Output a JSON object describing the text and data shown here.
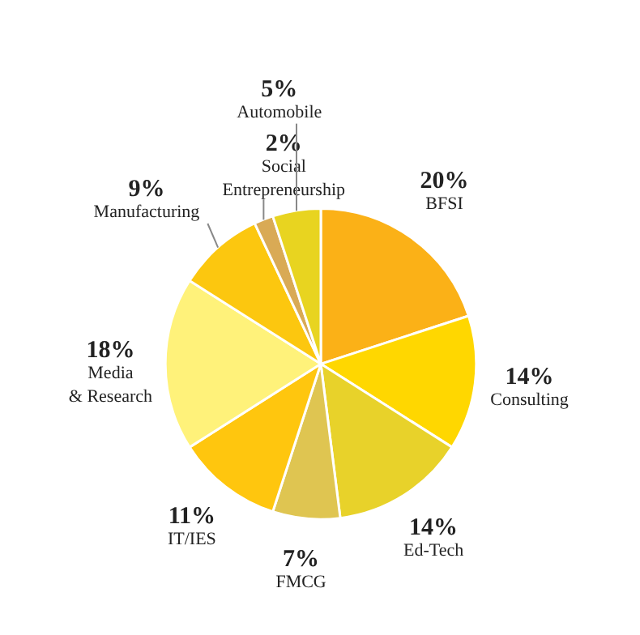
{
  "chart_data": {
    "type": "pie",
    "categories": [
      "BFSI",
      "Consulting",
      "Ed-Tech",
      "FMCG",
      "IT/IES",
      "Media\n& Research",
      "Manufacturing",
      "Social\nEntrepreneurship",
      "Automobile"
    ],
    "values": [
      20,
      14,
      14,
      7,
      11,
      18,
      9,
      2,
      5
    ],
    "value_labels": [
      "20%",
      "14%",
      "14%",
      "7%",
      "11%",
      "18%",
      "9%",
      "2%",
      "5%"
    ],
    "colors": [
      "#fbb117",
      "#ffd700",
      "#e8d22a",
      "#dfc551",
      "#ffc60e",
      "#fff27a",
      "#fcc70f",
      "#d9aa55",
      "#e8d420"
    ],
    "legend": false
  }
}
